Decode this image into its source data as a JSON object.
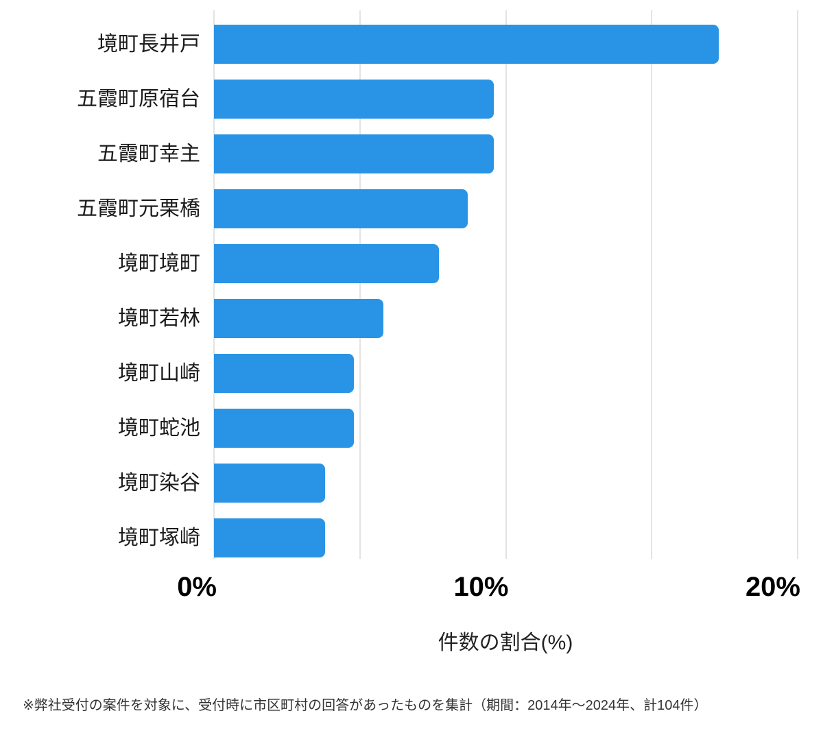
{
  "chart_data": {
    "type": "bar",
    "orientation": "horizontal",
    "title": "",
    "categories": [
      "境町長井戸",
      "五霞町原宿台",
      "五霞町幸主",
      "五霞町元栗橋",
      "境町境町",
      "境町若林",
      "境町山崎",
      "境町蛇池",
      "境町染谷",
      "境町塚崎"
    ],
    "values": [
      17.3,
      9.6,
      9.6,
      8.7,
      7.7,
      5.8,
      4.8,
      4.8,
      3.8,
      3.8
    ],
    "xlabel": "件数の割合(%)",
    "xlim": [
      0,
      20
    ],
    "xticks": [
      {
        "value": 0,
        "label": "0%"
      },
      {
        "value": 10,
        "label": "10%"
      },
      {
        "value": 20,
        "label": "20%"
      }
    ],
    "gridline_values": [
      0,
      5,
      10,
      15,
      20
    ],
    "grid": true,
    "legend": false,
    "bar_color": "#2994e5",
    "gridline_color": "#e3e3e3"
  },
  "footnote": "※弊社受付の案件を対象に、受付時に市区町村の回答があったものを集計（期間：2014年～2024年、計104件）"
}
